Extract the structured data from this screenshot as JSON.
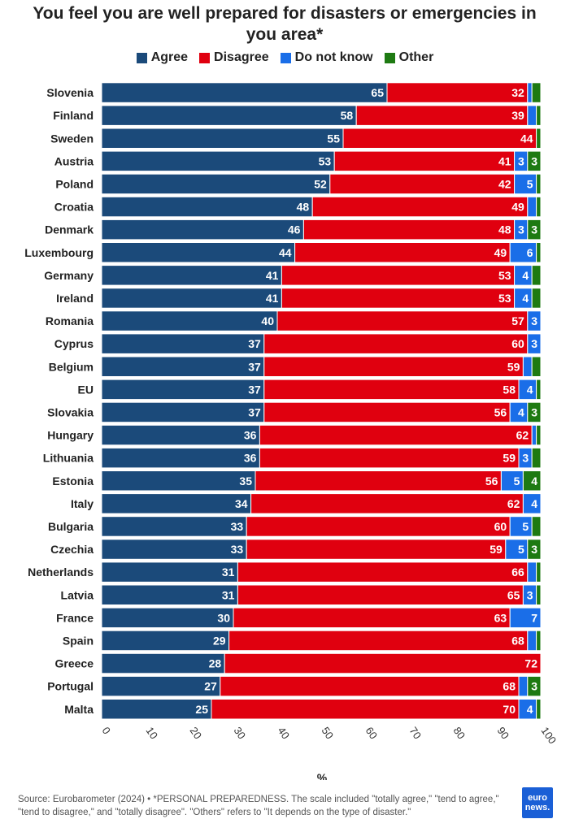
{
  "chart_data": {
    "type": "bar",
    "orientation": "horizontal",
    "stacked": true,
    "title": "You feel you are well prepared for disasters or emergencies in you area*",
    "xlabel": "%",
    "ylabel": "",
    "xlim": [
      0,
      100
    ],
    "xticks": [
      "0",
      "10",
      "20",
      "30",
      "40",
      "50",
      "60",
      "70",
      "80",
      "90",
      "100"
    ],
    "legend_position": "top",
    "categories": [
      "Slovenia",
      "Finland",
      "Sweden",
      "Austria",
      "Poland",
      "Croatia",
      "Denmark",
      "Luxembourg",
      "Germany",
      "Ireland",
      "Romania",
      "Cyprus",
      "Belgium",
      "EU",
      "Slovakia",
      "Hungary",
      "Lithuania",
      "Estonia",
      "Italy",
      "Bulgaria",
      "Czechia",
      "Netherlands",
      "Latvia",
      "France",
      "Spain",
      "Greece",
      "Portugal",
      "Malta"
    ],
    "series": [
      {
        "name": "Agree",
        "color": "#1b4a7a",
        "values": [
          65,
          58,
          55,
          53,
          52,
          48,
          46,
          44,
          41,
          41,
          40,
          37,
          37,
          37,
          37,
          36,
          36,
          35,
          34,
          33,
          33,
          31,
          31,
          30,
          29,
          28,
          27,
          25
        ],
        "labels": [
          "65",
          "58",
          "55",
          "53",
          "52",
          "48",
          "46",
          "44",
          "41",
          "41",
          "40",
          "37",
          "37",
          "37",
          "37",
          "36",
          "36",
          "35",
          "34",
          "33",
          "33",
          "31",
          "31",
          "30",
          "29",
          "28",
          "27",
          "25"
        ]
      },
      {
        "name": "Disagree",
        "color": "#e0000f",
        "values": [
          32,
          39,
          44,
          41,
          42,
          49,
          48,
          49,
          53,
          53,
          57,
          60,
          59,
          58,
          56,
          62,
          59,
          56,
          62,
          60,
          59,
          66,
          65,
          63,
          68,
          72,
          68,
          70
        ],
        "labels": [
          "32",
          "39",
          "44",
          "41",
          "42",
          "49",
          "48",
          "49",
          "53",
          "53",
          "57",
          "60",
          "59",
          "58",
          "56",
          "62",
          "59",
          "56",
          "62",
          "60",
          "59",
          "66",
          "65",
          "63",
          "68",
          "72",
          "68",
          "70"
        ]
      },
      {
        "name": "Do not know",
        "color": "#1a6ee8",
        "values": [
          1,
          2,
          0,
          3,
          5,
          2,
          3,
          6,
          4,
          4,
          3,
          3,
          2,
          4,
          4,
          1,
          3,
          5,
          4,
          5,
          5,
          2,
          3,
          7,
          2,
          0,
          2,
          4
        ],
        "labels": [
          "",
          "",
          "",
          "3",
          "5",
          "",
          "3",
          "6",
          "4",
          "4",
          "3",
          "3",
          "",
          "4",
          "4",
          "",
          "3",
          "5",
          "4",
          "5",
          "5",
          "",
          "3",
          "7",
          "",
          "",
          "",
          "4"
        ]
      },
      {
        "name": "Other",
        "color": "#1e7a12",
        "values": [
          2,
          1,
          1,
          3,
          1,
          1,
          3,
          1,
          2,
          2,
          0,
          0,
          2,
          1,
          3,
          1,
          2,
          4,
          0,
          2,
          3,
          1,
          1,
          0,
          1,
          0,
          3,
          1
        ],
        "labels": [
          "",
          "",
          "",
          "3",
          "",
          "",
          "3",
          "",
          "",
          "",
          "",
          "",
          "",
          "",
          "3",
          "",
          "",
          "4",
          "",
          "",
          "3",
          "",
          "",
          "",
          "",
          "",
          "3",
          ""
        ]
      }
    ]
  },
  "footer": {
    "source": "Source: Eurobarometer (2024) • *PERSONAL PREPAREDNESS. The scale included \"totally agree,\" \"tend to agree,\" \"tend to disagree,\" and \"totally disagree\". \"Others\" refers to \"It depends on the type of disaster.\""
  },
  "logo": {
    "line1": "euro",
    "line2": "news."
  }
}
